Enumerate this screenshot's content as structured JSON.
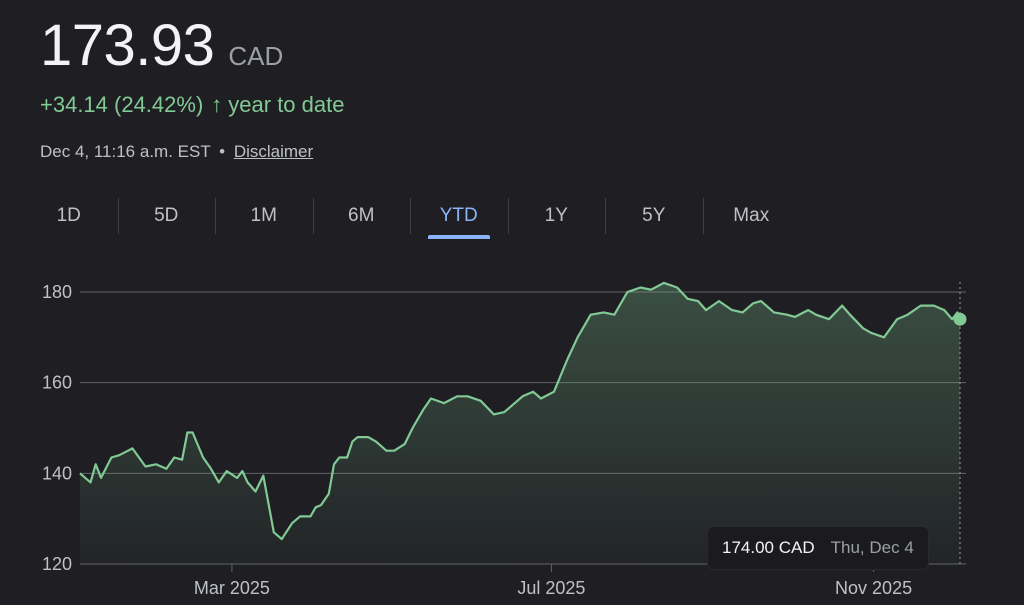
{
  "header": {
    "price": "173.93",
    "currency": "CAD",
    "change": "+34.14 (24.42%)",
    "change_arrow": "↑",
    "change_period": "year to date",
    "timestamp": "Dec 4, 11:16 a.m. EST",
    "separator": "•",
    "disclaimer": "Disclaimer"
  },
  "tabs": [
    {
      "label": "1D",
      "active": false
    },
    {
      "label": "5D",
      "active": false
    },
    {
      "label": "1M",
      "active": false
    },
    {
      "label": "6M",
      "active": false
    },
    {
      "label": "YTD",
      "active": true
    },
    {
      "label": "1Y",
      "active": false
    },
    {
      "label": "5Y",
      "active": false
    },
    {
      "label": "Max",
      "active": false
    }
  ],
  "tooltip": {
    "price": "174.00 CAD",
    "date": "Thu, Dec 4"
  },
  "colors": {
    "line": "#81c995",
    "active_tab": "#8ab4f8",
    "background": "#1f1f23"
  },
  "chart_data": {
    "type": "area",
    "ylim": [
      120,
      185
    ],
    "yticks": [
      120,
      140,
      160,
      180
    ],
    "xlim": [
      "2025-01-02",
      "2025-12-04"
    ],
    "xticks": [
      {
        "label": "Mar 2025",
        "date": "2025-03-01"
      },
      {
        "label": "Jul 2025",
        "date": "2025-07-01"
      },
      {
        "label": "Nov 2025",
        "date": "2025-11-01"
      }
    ],
    "grid": true,
    "x": [
      "2025-01-02",
      "2025-01-06",
      "2025-01-08",
      "2025-01-10",
      "2025-01-14",
      "2025-01-17",
      "2025-01-22",
      "2025-01-27",
      "2025-01-31",
      "2025-02-04",
      "2025-02-07",
      "2025-02-10",
      "2025-02-12",
      "2025-02-14",
      "2025-02-18",
      "2025-02-21",
      "2025-02-24",
      "2025-02-27",
      "2025-03-03",
      "2025-03-05",
      "2025-03-07",
      "2025-03-10",
      "2025-03-13",
      "2025-03-17",
      "2025-03-20",
      "2025-03-24",
      "2025-03-27",
      "2025-03-31",
      "2025-04-02",
      "2025-04-04",
      "2025-04-07",
      "2025-04-09",
      "2025-04-11",
      "2025-04-14",
      "2025-04-16",
      "2025-04-18",
      "2025-04-22",
      "2025-04-25",
      "2025-04-29",
      "2025-05-02",
      "2025-05-06",
      "2025-05-09",
      "2025-05-13",
      "2025-05-16",
      "2025-05-21",
      "2025-05-26",
      "2025-05-30",
      "2025-06-04",
      "2025-06-09",
      "2025-06-13",
      "2025-06-17",
      "2025-06-20",
      "2025-06-24",
      "2025-06-27",
      "2025-07-02",
      "2025-07-07",
      "2025-07-11",
      "2025-07-16",
      "2025-07-21",
      "2025-07-25",
      "2025-07-30",
      "2025-08-04",
      "2025-08-08",
      "2025-08-13",
      "2025-08-18",
      "2025-08-22",
      "2025-08-26",
      "2025-08-29",
      "2025-09-03",
      "2025-09-08",
      "2025-09-12",
      "2025-09-16",
      "2025-09-19",
      "2025-09-24",
      "2025-09-29",
      "2025-10-02",
      "2025-10-07",
      "2025-10-10",
      "2025-10-15",
      "2025-10-20",
      "2025-10-23",
      "2025-10-28",
      "2025-10-31",
      "2025-11-05",
      "2025-11-10",
      "2025-11-14",
      "2025-11-19",
      "2025-11-24",
      "2025-11-28",
      "2025-12-01",
      "2025-12-03",
      "2025-12-04"
    ],
    "series": [
      {
        "values": [
          140,
          138,
          142,
          139,
          143.5,
          144,
          145.5,
          141.5,
          142,
          141,
          143.5,
          143,
          149,
          149,
          143.5,
          141,
          138,
          140.5,
          139,
          140.5,
          138,
          136,
          139.5,
          127,
          125.5,
          129,
          130.5,
          130.5,
          132.5,
          133,
          135.5,
          142,
          143.5,
          143.5,
          147,
          148,
          148,
          147,
          145,
          145,
          146.5,
          150,
          154,
          156.5,
          155.5,
          157,
          157,
          156,
          153,
          153.5,
          155.5,
          157,
          158,
          156.5,
          158,
          165,
          170,
          175,
          175.5,
          175,
          180,
          181,
          180.5,
          182,
          181,
          178.5,
          178,
          176,
          178,
          176,
          175.5,
          177.5,
          178,
          175.5,
          175,
          174.5,
          176,
          175,
          174,
          177,
          175,
          172,
          171,
          170,
          174,
          175,
          177,
          177,
          176,
          174,
          175.5,
          174
        ]
      }
    ]
  }
}
